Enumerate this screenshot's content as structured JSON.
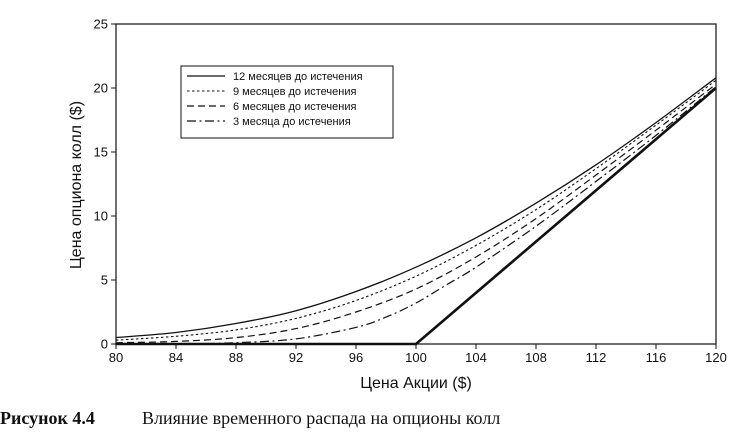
{
  "chart_data": {
    "type": "line",
    "xlabel": "Цена Акции ($)",
    "ylabel": "Цена опциона колл ($)",
    "xlim": [
      80,
      120
    ],
    "ylim": [
      0,
      25
    ],
    "xticks": [
      "80",
      "84",
      "88",
      "92",
      "96",
      "100",
      "104",
      "108",
      "112",
      "116",
      "120"
    ],
    "yticks": [
      "0",
      "5",
      "10",
      "15",
      "20",
      "25"
    ],
    "grid": false,
    "legend_position": "top-left inside",
    "series": [
      {
        "name": "12 месяцев до истечения",
        "style": "solid",
        "x": [
          80,
          84,
          88,
          92,
          96,
          100,
          104,
          108,
          112,
          116,
          120
        ],
        "y": [
          0.5,
          0.9,
          1.6,
          2.6,
          4.1,
          6.0,
          8.3,
          11.0,
          14.0,
          17.3,
          20.8
        ]
      },
      {
        "name": "9 месяцев до истечения",
        "style": "dotted",
        "x": [
          80,
          84,
          88,
          92,
          96,
          100,
          104,
          108,
          112,
          116,
          120
        ],
        "y": [
          0.3,
          0.6,
          1.1,
          2.0,
          3.4,
          5.3,
          7.7,
          10.5,
          13.7,
          17.1,
          20.6
        ]
      },
      {
        "name": "6 месяцев до истечения",
        "style": "dashed",
        "x": [
          80,
          84,
          88,
          92,
          96,
          100,
          104,
          108,
          112,
          116,
          120
        ],
        "y": [
          0.1,
          0.2,
          0.5,
          1.2,
          2.5,
          4.3,
          6.8,
          9.8,
          13.2,
          16.7,
          20.3
        ]
      },
      {
        "name": "3 месяца до истечения",
        "style": "dashdot",
        "x": [
          80,
          84,
          88,
          92,
          96,
          98,
          100,
          102,
          104,
          108,
          112,
          116,
          120
        ],
        "y": [
          0.0,
          0.0,
          0.1,
          0.4,
          1.3,
          2.1,
          3.2,
          4.6,
          6.0,
          9.2,
          12.7,
          16.3,
          20.1
        ]
      },
      {
        "name": "",
        "style": "solid-bold",
        "x": [
          80,
          100,
          120
        ],
        "y": [
          0,
          0,
          20
        ]
      }
    ]
  },
  "caption": {
    "number": "Рисунок 4.4",
    "text": "Влияние временного распада на опционы колл"
  }
}
